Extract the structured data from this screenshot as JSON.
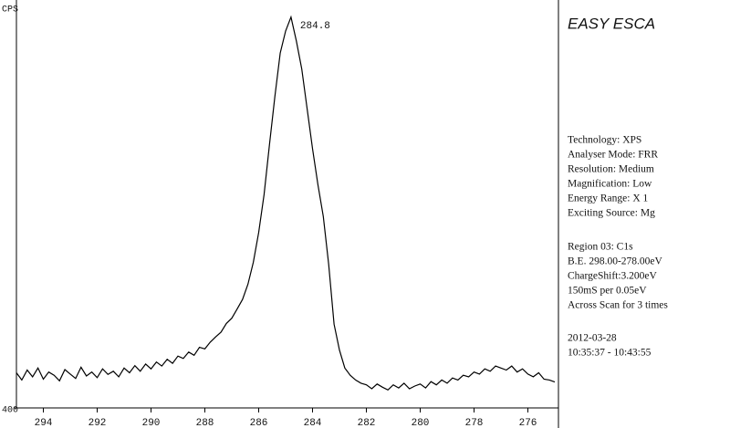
{
  "chart_data": {
    "type": "line",
    "y_label": "CPS",
    "xlim": [
      295,
      275
    ],
    "xticks": [
      294,
      292,
      290,
      288,
      286,
      284,
      282,
      280,
      278,
      276
    ],
    "ylim": [
      400,
      1400
    ],
    "yticks": [
      400
    ],
    "annotation": {
      "x": 284.8
    },
    "x": [
      295.0,
      294.8,
      294.6,
      294.4,
      294.2,
      294.0,
      293.8,
      293.6,
      293.4,
      293.2,
      293.0,
      292.8,
      292.6,
      292.4,
      292.2,
      292.0,
      291.8,
      291.6,
      291.4,
      291.2,
      291.0,
      290.8,
      290.6,
      290.4,
      290.2,
      290.0,
      289.8,
      289.6,
      289.4,
      289.2,
      289.0,
      288.8,
      288.6,
      288.4,
      288.2,
      288.0,
      287.8,
      287.6,
      287.4,
      287.2,
      287.0,
      286.8,
      286.6,
      286.4,
      286.2,
      286.0,
      285.8,
      285.6,
      285.4,
      285.2,
      285.0,
      284.8,
      284.6,
      284.4,
      284.2,
      284.0,
      283.8,
      283.6,
      283.4,
      283.2,
      283.0,
      282.8,
      282.6,
      282.4,
      282.2,
      282.0,
      281.8,
      281.6,
      281.4,
      281.2,
      281.0,
      280.8,
      280.6,
      280.4,
      280.2,
      280.0,
      279.8,
      279.6,
      279.4,
      279.2,
      279.0,
      278.8,
      278.6,
      278.4,
      278.2,
      278.0,
      277.8,
      277.6,
      277.4,
      277.2,
      277.0,
      276.8,
      276.6,
      276.4,
      276.2,
      276.0,
      275.8,
      275.6,
      275.4,
      275.2,
      275.0
    ],
    "series": [
      {
        "color": "#000000",
        "values": [
          488,
          470,
          495,
          478,
          500,
          472,
          490,
          482,
          468,
          496,
          485,
          474,
          502,
          480,
          490,
          476,
          498,
          484,
          492,
          478,
          500,
          488,
          506,
          492,
          510,
          498,
          515,
          505,
          522,
          512,
          530,
          524,
          540,
          532,
          552,
          548,
          565,
          578,
          590,
          612,
          625,
          648,
          672,
          710,
          765,
          840,
          935,
          1060,
          1180,
          1290,
          1345,
          1380,
          1320,
          1250,
          1150,
          1050,
          960,
          880,
          760,
          610,
          545,
          500,
          482,
          470,
          462,
          458,
          448,
          460,
          452,
          445,
          458,
          450,
          462,
          448,
          455,
          460,
          450,
          466,
          458,
          470,
          462,
          475,
          470,
          482,
          478,
          490,
          485,
          498,
          492,
          505,
          500,
          495,
          505,
          490,
          498,
          485,
          478,
          488,
          472,
          470,
          465
        ]
      }
    ]
  },
  "info_panel": {
    "title": "EASY ESCA",
    "groups": [
      [
        "Technology: XPS",
        "Analyser Mode: FRR",
        "Resolution: Medium",
        "Magnification: Low",
        "Energy Range: X 1",
        "Exciting Source: Mg"
      ],
      [
        "Region 03: C1s",
        "B.E. 298.00-278.00eV",
        "ChargeShift:3.200eV",
        "150mS per 0.05eV",
        "Across Scan for 3 times"
      ],
      [
        "2012-03-28",
        "10:35:37 - 10:43:55"
      ]
    ]
  }
}
